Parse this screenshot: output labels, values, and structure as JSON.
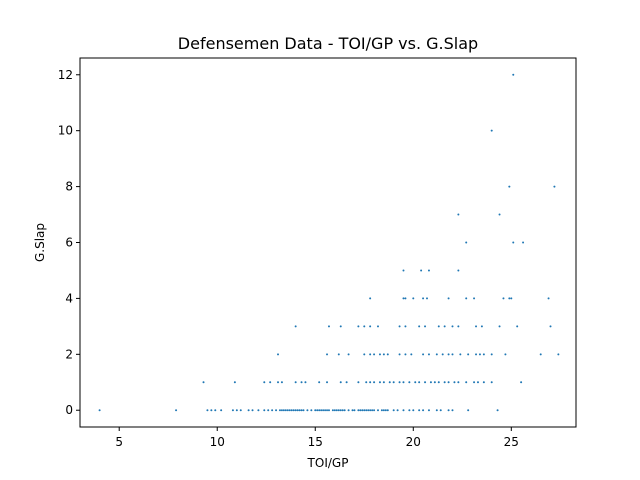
{
  "chart_data": {
    "type": "scatter",
    "title": "Defensemen Data - TOI/GP vs. G.Slap",
    "xlabel": "TOI/GP",
    "ylabel": "G.Slap",
    "xlim": [
      3,
      28.3
    ],
    "ylim": [
      -0.6,
      12.6
    ],
    "xticks": [
      5,
      10,
      15,
      20,
      25
    ],
    "yticks": [
      0,
      2,
      4,
      6,
      8,
      10,
      12
    ],
    "grid": false,
    "legend": "none",
    "marker_color": "#1f77b4",
    "points": [
      [
        4.0,
        0
      ],
      [
        7.9,
        0
      ],
      [
        9.5,
        0
      ],
      [
        9.7,
        0
      ],
      [
        9.9,
        0
      ],
      [
        10.2,
        0
      ],
      [
        10.8,
        0
      ],
      [
        11.0,
        0
      ],
      [
        11.2,
        0
      ],
      [
        11.6,
        0
      ],
      [
        11.8,
        0
      ],
      [
        12.1,
        0
      ],
      [
        12.4,
        0
      ],
      [
        12.6,
        0
      ],
      [
        12.8,
        0
      ],
      [
        13.0,
        0
      ],
      [
        13.2,
        0
      ],
      [
        13.3,
        0
      ],
      [
        13.4,
        0
      ],
      [
        13.5,
        0
      ],
      [
        13.6,
        0
      ],
      [
        13.7,
        0
      ],
      [
        13.8,
        0
      ],
      [
        13.9,
        0
      ],
      [
        14.0,
        0
      ],
      [
        14.1,
        0
      ],
      [
        14.2,
        0
      ],
      [
        14.3,
        0
      ],
      [
        14.4,
        0
      ],
      [
        14.6,
        0
      ],
      [
        14.8,
        0
      ],
      [
        15.0,
        0
      ],
      [
        15.1,
        0
      ],
      [
        15.2,
        0
      ],
      [
        15.3,
        0
      ],
      [
        15.4,
        0
      ],
      [
        15.5,
        0
      ],
      [
        15.6,
        0
      ],
      [
        15.7,
        0
      ],
      [
        15.9,
        0
      ],
      [
        16.0,
        0
      ],
      [
        16.1,
        0
      ],
      [
        16.2,
        0
      ],
      [
        16.3,
        0
      ],
      [
        16.4,
        0
      ],
      [
        16.5,
        0
      ],
      [
        16.7,
        0
      ],
      [
        16.9,
        0
      ],
      [
        17.0,
        0
      ],
      [
        17.2,
        0
      ],
      [
        17.3,
        0
      ],
      [
        17.4,
        0
      ],
      [
        17.5,
        0
      ],
      [
        17.6,
        0
      ],
      [
        17.7,
        0
      ],
      [
        17.8,
        0
      ],
      [
        17.9,
        0
      ],
      [
        18.0,
        0
      ],
      [
        18.2,
        0
      ],
      [
        18.4,
        0
      ],
      [
        18.5,
        0
      ],
      [
        18.6,
        0
      ],
      [
        18.7,
        0
      ],
      [
        19.0,
        0
      ],
      [
        19.2,
        0
      ],
      [
        19.5,
        0
      ],
      [
        19.8,
        0
      ],
      [
        20.0,
        0
      ],
      [
        20.3,
        0
      ],
      [
        20.5,
        0
      ],
      [
        20.8,
        0
      ],
      [
        21.2,
        0
      ],
      [
        21.4,
        0
      ],
      [
        21.8,
        0
      ],
      [
        22.0,
        0
      ],
      [
        22.8,
        0
      ],
      [
        24.3,
        0
      ],
      [
        9.3,
        1
      ],
      [
        10.9,
        1
      ],
      [
        12.4,
        1
      ],
      [
        12.7,
        1
      ],
      [
        13.1,
        1
      ],
      [
        13.3,
        1
      ],
      [
        14.0,
        1
      ],
      [
        14.3,
        1
      ],
      [
        14.5,
        1
      ],
      [
        15.2,
        1
      ],
      [
        15.6,
        1
      ],
      [
        16.3,
        1
      ],
      [
        16.6,
        1
      ],
      [
        17.2,
        1
      ],
      [
        17.6,
        1
      ],
      [
        17.8,
        1
      ],
      [
        18.0,
        1
      ],
      [
        18.3,
        1
      ],
      [
        18.5,
        1
      ],
      [
        18.8,
        1
      ],
      [
        19.0,
        1
      ],
      [
        19.3,
        1
      ],
      [
        19.5,
        1
      ],
      [
        19.8,
        1
      ],
      [
        20.1,
        1
      ],
      [
        20.3,
        1
      ],
      [
        20.6,
        1
      ],
      [
        20.9,
        1
      ],
      [
        21.1,
        1
      ],
      [
        21.3,
        1
      ],
      [
        21.6,
        1
      ],
      [
        21.8,
        1
      ],
      [
        22.1,
        1
      ],
      [
        22.3,
        1
      ],
      [
        22.7,
        1
      ],
      [
        23.1,
        1
      ],
      [
        23.3,
        1
      ],
      [
        23.6,
        1
      ],
      [
        24.0,
        1
      ],
      [
        25.5,
        1
      ],
      [
        13.1,
        2
      ],
      [
        15.6,
        2
      ],
      [
        16.2,
        2
      ],
      [
        16.7,
        2
      ],
      [
        17.5,
        2
      ],
      [
        17.8,
        2
      ],
      [
        18.0,
        2
      ],
      [
        18.3,
        2
      ],
      [
        18.5,
        2
      ],
      [
        18.7,
        2
      ],
      [
        19.3,
        2
      ],
      [
        19.6,
        2
      ],
      [
        19.9,
        2
      ],
      [
        20.5,
        2
      ],
      [
        20.8,
        2
      ],
      [
        21.2,
        2
      ],
      [
        21.5,
        2
      ],
      [
        21.8,
        2
      ],
      [
        22.0,
        2
      ],
      [
        22.4,
        2
      ],
      [
        22.8,
        2
      ],
      [
        23.2,
        2
      ],
      [
        23.4,
        2
      ],
      [
        23.6,
        2
      ],
      [
        24.0,
        2
      ],
      [
        24.7,
        2
      ],
      [
        26.5,
        2
      ],
      [
        27.4,
        2
      ],
      [
        14.0,
        3
      ],
      [
        15.7,
        3
      ],
      [
        16.3,
        3
      ],
      [
        17.2,
        3
      ],
      [
        17.5,
        3
      ],
      [
        17.8,
        3
      ],
      [
        18.2,
        3
      ],
      [
        19.3,
        3
      ],
      [
        19.6,
        3
      ],
      [
        20.3,
        3
      ],
      [
        20.6,
        3
      ],
      [
        21.3,
        3
      ],
      [
        21.6,
        3
      ],
      [
        22.0,
        3
      ],
      [
        22.3,
        3
      ],
      [
        23.2,
        3
      ],
      [
        23.5,
        3
      ],
      [
        24.4,
        3
      ],
      [
        25.3,
        3
      ],
      [
        27.0,
        3
      ],
      [
        17.8,
        4
      ],
      [
        19.5,
        4
      ],
      [
        19.6,
        4
      ],
      [
        20.0,
        4
      ],
      [
        20.5,
        4
      ],
      [
        20.7,
        4
      ],
      [
        21.8,
        4
      ],
      [
        22.7,
        4
      ],
      [
        23.1,
        4
      ],
      [
        24.6,
        4
      ],
      [
        24.9,
        4
      ],
      [
        25.0,
        4
      ],
      [
        26.9,
        4
      ],
      [
        19.5,
        5
      ],
      [
        20.4,
        5
      ],
      [
        20.8,
        5
      ],
      [
        22.3,
        5
      ],
      [
        22.7,
        6
      ],
      [
        25.1,
        6
      ],
      [
        25.6,
        6
      ],
      [
        22.3,
        7
      ],
      [
        24.4,
        7
      ],
      [
        24.9,
        8
      ],
      [
        27.2,
        8
      ],
      [
        24.0,
        10
      ],
      [
        25.1,
        12
      ]
    ]
  }
}
